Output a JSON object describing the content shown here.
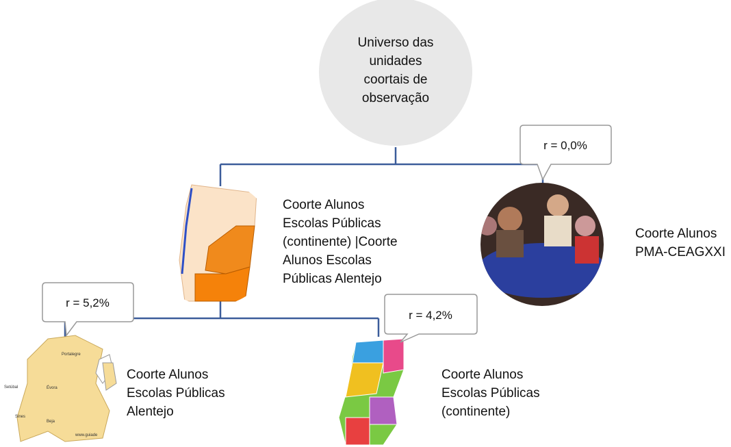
{
  "root": {
    "label": [
      "Universo das",
      "unidades",
      "coortais de",
      "observação"
    ]
  },
  "nodes": [
    {
      "label": [
        "Coorte Alunos",
        "Escolas Públicas",
        "(continente) |Coorte",
        "Alunos Escolas",
        "Públicas Alentejo"
      ]
    },
    {
      "label": [
        "Coorte Alunos",
        "PMA-CEAGXXI"
      ],
      "callout": "r = 0,0%"
    },
    {
      "label": [
        "Coorte Alunos",
        "Escolas Públicas",
        "Alentejo"
      ],
      "callout": "r = 5,2%",
      "map_labels": [
        "Portalegre",
        "Évora",
        "Setúbal",
        "Sines",
        "Beja",
        "www.guiade"
      ]
    },
    {
      "label": [
        "Coorte Alunos",
        "Escolas Públicas",
        "(continente)"
      ],
      "callout": "r = 4,2%"
    }
  ]
}
